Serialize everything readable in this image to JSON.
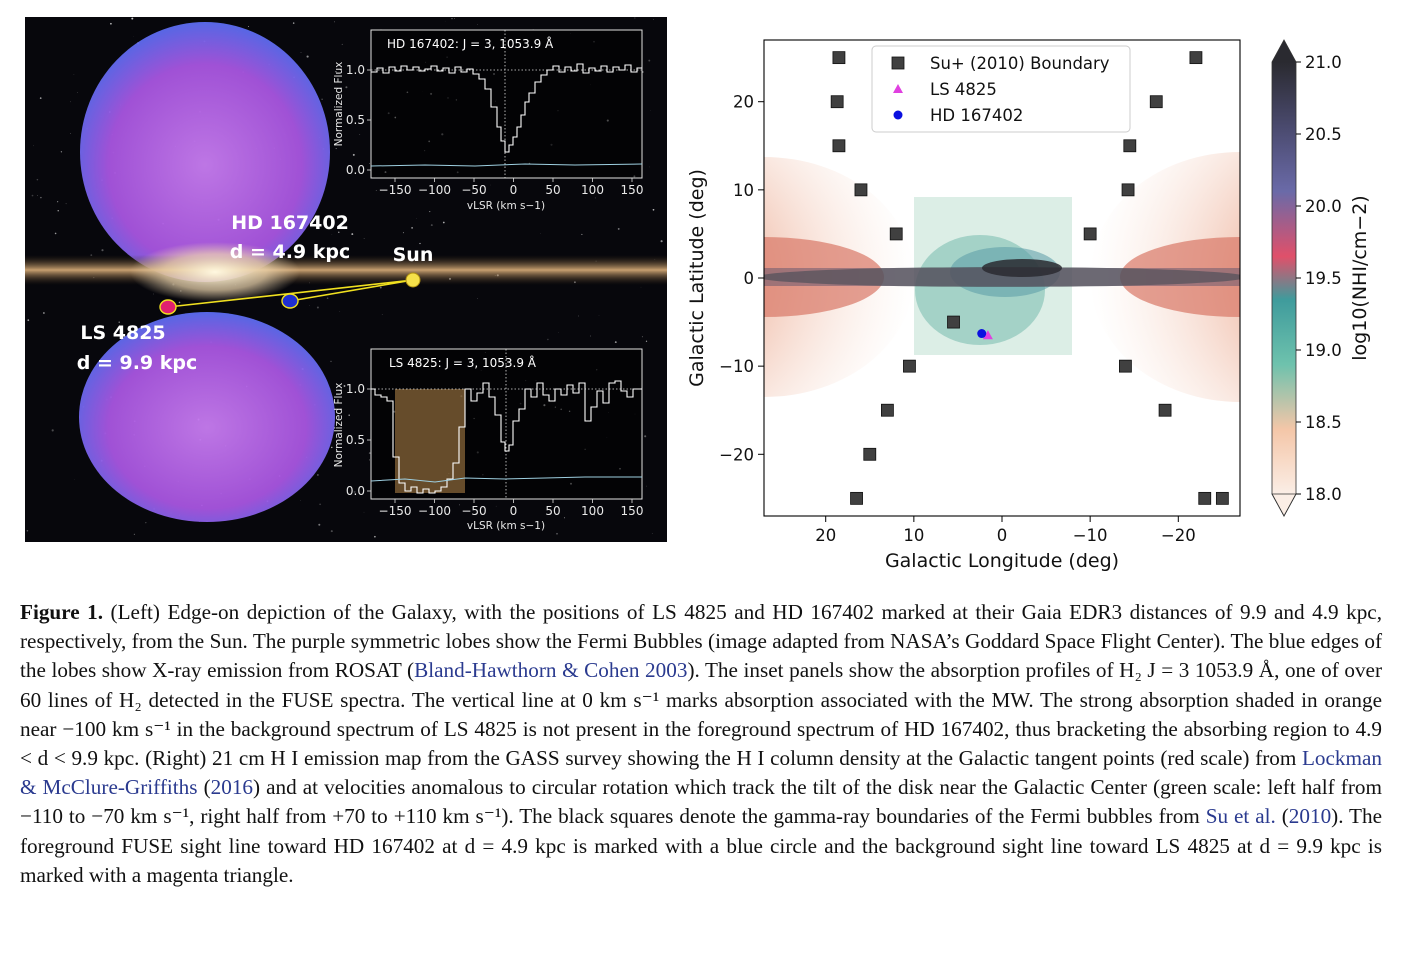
{
  "left": {
    "hd_name": "HD 167402",
    "hd_dist": "d = 4.9 kpc",
    "sun": "Sun",
    "ls_name": "LS 4825",
    "ls_dist": "d = 9.9 kpc",
    "inset_top": {
      "title": "HD 167402: J = 3, 1053.9 Å",
      "ylabel": "Normalized Flux",
      "xlabel": "vLSR (km s−1)",
      "xticks": [
        "−150",
        "−100",
        "−50",
        "0",
        "50",
        "100",
        "150"
      ],
      "yticks": [
        "0.0",
        "0.5",
        "1.0"
      ]
    },
    "inset_bottom": {
      "title": "LS 4825: J = 3, 1053.9 Å",
      "ylabel": "Normalized Flux",
      "xlabel": "vLSR (km s−1)",
      "xticks": [
        "−150",
        "−100",
        "−50",
        "0",
        "50",
        "100",
        "150"
      ],
      "yticks": [
        "0.0",
        "0.5",
        "1.0"
      ]
    }
  },
  "chart_data": {
    "type": "scatter",
    "xlabel": "Galactic Longitude (deg)",
    "ylabel": "Galactic Latitude (deg)",
    "xlim": [
      27,
      -27
    ],
    "ylim": [
      -27,
      27
    ],
    "xticks": [
      20,
      10,
      0,
      -10,
      -20
    ],
    "yticks": [
      -20,
      -10,
      0,
      10,
      20
    ],
    "xtick_labels": [
      "20",
      "10",
      "0",
      "−10",
      "−20"
    ],
    "ytick_labels": [
      "−20",
      "−10",
      "0",
      "10",
      "20"
    ],
    "legend_position": "top-center",
    "series": [
      {
        "name": "Su+ (2010) Boundary",
        "marker": "square",
        "color": "#404040",
        "points": [
          [
            18.5,
            25
          ],
          [
            18.7,
            20
          ],
          [
            18.5,
            15
          ],
          [
            16,
            10
          ],
          [
            12,
            5
          ],
          [
            5.5,
            -5
          ],
          [
            10.5,
            -10
          ],
          [
            13,
            -15
          ],
          [
            15,
            -20
          ],
          [
            16.5,
            -25
          ],
          [
            -22,
            25
          ],
          [
            -17.5,
            20
          ],
          [
            -14.5,
            15
          ],
          [
            -14.3,
            10
          ],
          [
            -10,
            5
          ],
          [
            -14,
            -10
          ],
          [
            -18.5,
            -15
          ],
          [
            -23,
            -25
          ],
          [
            -25,
            -25
          ]
        ]
      },
      {
        "name": "LS 4825",
        "marker": "triangle",
        "color": "#e040e0",
        "points": [
          [
            1.6,
            -6.5
          ]
        ]
      },
      {
        "name": "HD 167402",
        "marker": "circle",
        "color": "#0a10e0",
        "points": [
          [
            2.3,
            -6.3
          ]
        ]
      }
    ],
    "colorbar": {
      "label": "log10(NHI/cm−2)",
      "min": 18.0,
      "max": 21.0,
      "ticks": [
        "18.0",
        "18.5",
        "19.0",
        "19.5",
        "20.0",
        "20.5",
        "21.0"
      ]
    }
  },
  "caption": {
    "figure_label": "Figure 1.",
    "part1": " (Left) Edge-on depiction of the Galaxy, with the positions of LS 4825 and HD 167402 marked at their Gaia EDR3 distances of 9.9 and 4.9 kpc, respectively, from the Sun. The purple symmetric lobes show the Fermi Bubbles (image adapted from NASA’s Goddard Space Flight Center). The blue edges of the lobes show X-ray emission from ROSAT (",
    "ref1": "Bland-Hawthorn & Cohen 2003",
    "part2": "). The inset panels show the absorption profiles of H₂ J = 3 1053.9 Å, one of over 60 lines of H₂ detected in the FUSE spectra. The vertical line at 0 km s⁻¹ marks absorption associated with the MW. The strong absorption shaded in orange near −100 km s⁻¹ in the background spectrum of LS 4825 is not present in the foreground spectrum of HD 167402, thus bracketing the absorbing region to 4.9 < d < 9.9 kpc. (Right) 21 cm H I emission map from the GASS survey showing the H I column density at the Galactic tangent points (red scale) from ",
    "ref2": "Lockman & McClure-Griffiths",
    "part3": " (",
    "ref3": "2016",
    "part4": ") and at velocities anomalous to circular rotation which track the tilt of the disk near the Galactic Center (green scale: left half from −110 to −70 km s⁻¹, right half from +70 to +110 km s⁻¹). The black squares denote the gamma-ray boundaries of the Fermi bubbles from ",
    "ref4": "Su et al.",
    "part5": " (",
    "ref5": "2010",
    "part6": "). The foreground FUSE sight line toward HD 167402 at d = 4.9 kpc is marked with a blue circle and the background sight line toward LS 4825 at d = 9.9 kpc is marked with a magenta triangle."
  }
}
